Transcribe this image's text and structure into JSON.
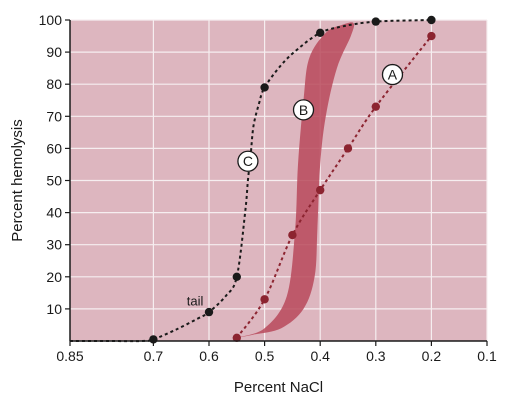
{
  "chart_data": {
    "type": "line",
    "title": "",
    "xlabel": "Percent NaCl",
    "ylabel": "Percent hemolysis",
    "x_reversed": true,
    "xlim": [
      0.85,
      0.1
    ],
    "ylim": [
      0,
      100
    ],
    "xticks": [
      "0.85",
      "0.7",
      "0.6",
      "0.5",
      "0.4",
      "0.3",
      "0.2",
      "0.1"
    ],
    "xtick_values": [
      0.85,
      0.7,
      0.6,
      0.5,
      0.4,
      0.3,
      0.2,
      0.1
    ],
    "yticks": [
      "10",
      "20",
      "30",
      "40",
      "50",
      "60",
      "70",
      "80",
      "90",
      "100"
    ],
    "ytick_values": [
      10,
      20,
      30,
      40,
      50,
      60,
      70,
      80,
      90,
      100
    ],
    "grid": true,
    "colors": {
      "plot_background": "#ddb6bf",
      "grid": "#f6eef0",
      "band_fill": "#b8495a",
      "curve_a": "#8c2430",
      "curve_c": "#1a1a1a"
    },
    "series": [
      {
        "name": "A",
        "style": "dashed",
        "points": [
          [
            0.55,
            1
          ],
          [
            0.5,
            13
          ],
          [
            0.45,
            33
          ],
          [
            0.4,
            47
          ],
          [
            0.35,
            60
          ],
          [
            0.3,
            73
          ],
          [
            0.2,
            95
          ]
        ],
        "label_at": [
          0.27,
          83
        ]
      },
      {
        "name": "C",
        "style": "dashed",
        "points": [
          [
            0.7,
            0.5
          ],
          [
            0.6,
            9
          ],
          [
            0.55,
            20
          ],
          [
            0.5,
            79
          ],
          [
            0.4,
            96
          ],
          [
            0.3,
            99.5
          ],
          [
            0.2,
            100
          ]
        ],
        "curve_path": [
          [
            0.85,
            0
          ],
          [
            0.78,
            0
          ],
          [
            0.72,
            0
          ],
          [
            0.7,
            0.5
          ],
          [
            0.66,
            3.5
          ],
          [
            0.62,
            7
          ],
          [
            0.6,
            9
          ],
          [
            0.57,
            14
          ],
          [
            0.55,
            20
          ],
          [
            0.535,
            40
          ],
          [
            0.53,
            50
          ],
          [
            0.525,
            58
          ],
          [
            0.52,
            67
          ],
          [
            0.51,
            74
          ],
          [
            0.5,
            79
          ],
          [
            0.47,
            86
          ],
          [
            0.44,
            91
          ],
          [
            0.4,
            96
          ],
          [
            0.36,
            98
          ],
          [
            0.3,
            99.5
          ],
          [
            0.2,
            100
          ]
        ],
        "label_at": [
          0.53,
          56
        ]
      },
      {
        "name": "B",
        "style": "band",
        "boundary": [
          [
            0.55,
            1
          ],
          [
            0.5,
            4
          ],
          [
            0.46,
            14
          ],
          [
            0.445,
            35
          ],
          [
            0.44,
            55
          ],
          [
            0.43,
            75
          ],
          [
            0.42,
            88
          ],
          [
            0.39,
            96
          ],
          [
            0.36,
            98.5
          ],
          [
            0.34,
            99
          ],
          [
            0.345,
            95
          ],
          [
            0.37,
            85
          ],
          [
            0.39,
            70
          ],
          [
            0.4,
            55
          ],
          [
            0.405,
            35
          ],
          [
            0.41,
            20
          ],
          [
            0.43,
            10
          ],
          [
            0.47,
            4
          ],
          [
            0.52,
            2
          ],
          [
            0.55,
            1
          ]
        ],
        "label_at": [
          0.43,
          72
        ]
      }
    ],
    "annotations": [
      {
        "text": "tail",
        "x": 0.625,
        "y": 11
      }
    ]
  }
}
